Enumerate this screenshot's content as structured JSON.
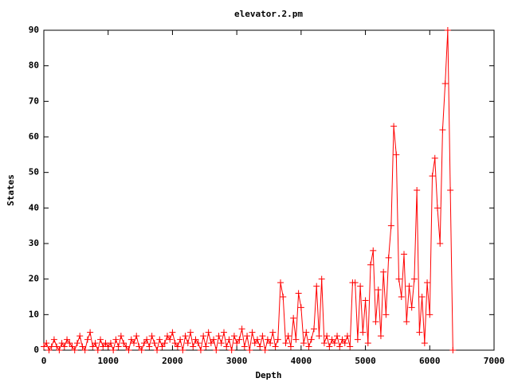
{
  "chart_data": {
    "type": "line",
    "title": "elevator.2.pm",
    "x_label": "Depth",
    "y_label": "States",
    "color": "#ff0000",
    "markers": true,
    "xlim": [
      0,
      7000
    ],
    "xticks": [
      0,
      1000,
      2000,
      3000,
      4000,
      5000,
      6000,
      7000
    ],
    "ylim": [
      0,
      90
    ],
    "yticks": [
      0,
      10,
      20,
      30,
      40,
      50,
      60,
      70,
      80,
      90
    ],
    "x": [
      0,
      40,
      80,
      120,
      160,
      200,
      240,
      280,
      320,
      360,
      400,
      440,
      480,
      520,
      560,
      600,
      640,
      680,
      720,
      760,
      800,
      840,
      880,
      920,
      960,
      1000,
      1040,
      1080,
      1120,
      1160,
      1200,
      1240,
      1280,
      1320,
      1360,
      1400,
      1440,
      1480,
      1520,
      1560,
      1600,
      1640,
      1680,
      1720,
      1760,
      1800,
      1840,
      1880,
      1920,
      1960,
      2000,
      2040,
      2080,
      2120,
      2160,
      2200,
      2240,
      2280,
      2320,
      2360,
      2400,
      2440,
      2480,
      2520,
      2560,
      2600,
      2640,
      2680,
      2720,
      2760,
      2800,
      2840,
      2880,
      2920,
      2960,
      3000,
      3040,
      3080,
      3120,
      3160,
      3200,
      3240,
      3280,
      3320,
      3360,
      3400,
      3440,
      3480,
      3520,
      3560,
      3600,
      3640,
      3680,
      3720,
      3760,
      3800,
      3840,
      3880,
      3920,
      3960,
      4000,
      4040,
      4080,
      4120,
      4160,
      4200,
      4240,
      4280,
      4320,
      4360,
      4400,
      4440,
      4480,
      4520,
      4560,
      4600,
      4640,
      4680,
      4720,
      4760,
      4800,
      4840,
      4880,
      4920,
      4960,
      5000,
      5040,
      5080,
      5120,
      5160,
      5200,
      5240,
      5280,
      5320,
      5360,
      5400,
      5440,
      5480,
      5520,
      5560,
      5600,
      5640,
      5680,
      5720,
      5760,
      5800,
      5840,
      5880,
      5920,
      5960,
      6000,
      6040,
      6080,
      6120,
      6160,
      6200,
      6240,
      6280,
      6320,
      6360
    ],
    "values": [
      1,
      2,
      0,
      1,
      3,
      1,
      0,
      2,
      1,
      3,
      2,
      1,
      0,
      2,
      4,
      1,
      0,
      3,
      5,
      1,
      2,
      0,
      3,
      1,
      2,
      1,
      2,
      0,
      3,
      1,
      4,
      2,
      1,
      0,
      3,
      2,
      4,
      1,
      0,
      2,
      3,
      1,
      4,
      2,
      0,
      3,
      1,
      2,
      4,
      3,
      5,
      2,
      1,
      3,
      0,
      4,
      2,
      5,
      1,
      3,
      2,
      0,
      4,
      1,
      5,
      2,
      3,
      0,
      4,
      2,
      5,
      1,
      3,
      0,
      4,
      2,
      3,
      6,
      1,
      4,
      0,
      5,
      2,
      3,
      1,
      4,
      0,
      3,
      2,
      5,
      1,
      3,
      19,
      15,
      2,
      4,
      1,
      9,
      3,
      16,
      12,
      2,
      5,
      1,
      3,
      6,
      18,
      4,
      20,
      2,
      4,
      1,
      3,
      2,
      4,
      1,
      3,
      2,
      4,
      1,
      19,
      19,
      3,
      18,
      5,
      14,
      2,
      24,
      28,
      8,
      17,
      4,
      22,
      10,
      26,
      35,
      63,
      55,
      20,
      15,
      27,
      8,
      18,
      12,
      20,
      45,
      5,
      15,
      2,
      19,
      10,
      49,
      54,
      40,
      30,
      62,
      75,
      90,
      45,
      0
    ]
  }
}
